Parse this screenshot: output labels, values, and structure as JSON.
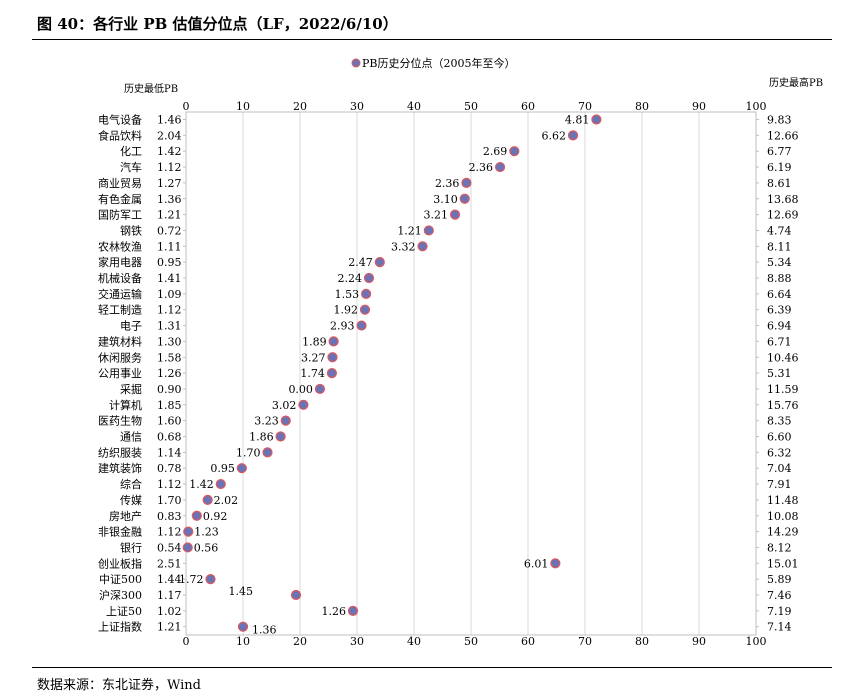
{
  "header": {
    "title": "图 40：各行业 PB 估值分位点（LF，2022/6/10）"
  },
  "footer": {
    "source": "数据来源：东北证券，Wind"
  },
  "chart_data": {
    "type": "scatter",
    "title": "",
    "legend": {
      "label": "PB历史分位点（2005年至今）",
      "position": "top-center"
    },
    "left_axis_label": "历史最低PB",
    "right_axis_label": "历史最高PB",
    "xlim": [
      0,
      100
    ],
    "xticks": [
      0,
      10,
      20,
      30,
      40,
      50,
      60,
      70,
      80,
      90,
      100
    ],
    "grid": true,
    "marker_color": "#6b72b5",
    "marker_edge_color": "#e0585a",
    "rows": [
      {
        "category": "电气设备",
        "low": "1.46",
        "high": "9.83",
        "pct": 72.0,
        "current": "4.81",
        "label_side": "left"
      },
      {
        "category": "食品饮料",
        "low": "2.04",
        "high": "12.66",
        "pct": 67.9,
        "current": "6.62",
        "label_side": "left"
      },
      {
        "category": "化工",
        "low": "1.42",
        "high": "6.77",
        "pct": 57.6,
        "current": "2.69",
        "label_side": "left"
      },
      {
        "category": "汽车",
        "low": "1.12",
        "high": "6.19",
        "pct": 55.1,
        "current": "2.36",
        "label_side": "left"
      },
      {
        "category": "商业贸易",
        "low": "1.27",
        "high": "8.61",
        "pct": 49.2,
        "current": "2.36",
        "label_side": "left"
      },
      {
        "category": "有色金属",
        "low": "1.36",
        "high": "13.68",
        "pct": 48.9,
        "current": "3.10",
        "label_side": "left"
      },
      {
        "category": "国防军工",
        "low": "1.21",
        "high": "12.69",
        "pct": 47.2,
        "current": "3.21",
        "label_side": "left"
      },
      {
        "category": "钢铁",
        "low": "0.72",
        "high": "4.74",
        "pct": 42.6,
        "current": "1.21",
        "label_side": "left"
      },
      {
        "category": "农林牧渔",
        "low": "1.11",
        "high": "8.11",
        "pct": 41.5,
        "current": "3.32",
        "label_side": "left"
      },
      {
        "category": "家用电器",
        "low": "0.95",
        "high": "5.34",
        "pct": 34.0,
        "current": "2.47",
        "label_side": "left"
      },
      {
        "category": "机械设备",
        "low": "1.41",
        "high": "8.88",
        "pct": 32.1,
        "current": "2.24",
        "label_side": "left"
      },
      {
        "category": "交通运输",
        "low": "1.09",
        "high": "6.64",
        "pct": 31.6,
        "current": "1.53",
        "label_side": "left"
      },
      {
        "category": "轻工制造",
        "low": "1.12",
        "high": "6.39",
        "pct": 31.4,
        "current": "1.92",
        "label_side": "left"
      },
      {
        "category": "电子",
        "low": "1.31",
        "high": "6.94",
        "pct": 30.8,
        "current": "2.93",
        "label_side": "left"
      },
      {
        "category": "建筑材料",
        "low": "1.30",
        "high": "6.71",
        "pct": 25.9,
        "current": "1.89",
        "label_side": "left"
      },
      {
        "category": "休闲服务",
        "low": "1.58",
        "high": "10.46",
        "pct": 25.7,
        "current": "3.27",
        "label_side": "left"
      },
      {
        "category": "公用事业",
        "low": "1.26",
        "high": "5.31",
        "pct": 25.6,
        "current": "1.74",
        "label_side": "left"
      },
      {
        "category": "采掘",
        "low": "0.90",
        "high": "11.59",
        "pct": 23.5,
        "current": "0.00",
        "label_side": "left"
      },
      {
        "category": "计算机",
        "low": "1.85",
        "high": "15.76",
        "pct": 20.6,
        "current": "3.02",
        "label_side": "left"
      },
      {
        "category": "医药生物",
        "low": "1.60",
        "high": "8.35",
        "pct": 17.5,
        "current": "3.23",
        "label_side": "left"
      },
      {
        "category": "通信",
        "low": "0.68",
        "high": "6.60",
        "pct": 16.6,
        "current": "1.86",
        "label_side": "left"
      },
      {
        "category": "纺织服装",
        "low": "1.14",
        "high": "6.32",
        "pct": 14.3,
        "current": "1.70",
        "label_side": "left"
      },
      {
        "category": "建筑装饰",
        "low": "0.78",
        "high": "7.04",
        "pct": 9.8,
        "current": "0.95",
        "label_side": "left"
      },
      {
        "category": "综合",
        "low": "1.12",
        "high": "7.91",
        "pct": 6.1,
        "current": "1.42",
        "label_side": "left"
      },
      {
        "category": "传媒",
        "low": "1.70",
        "high": "11.48",
        "pct": 3.8,
        "current": "2.02",
        "label_side": "right"
      },
      {
        "category": "房地产",
        "low": "0.83",
        "high": "10.08",
        "pct": 1.9,
        "current": "0.92",
        "label_side": "right"
      },
      {
        "category": "非银金融",
        "low": "1.12",
        "high": "14.29",
        "pct": 0.4,
        "current": "1.23",
        "label_side": "right"
      },
      {
        "category": "银行",
        "low": "0.54",
        "high": "8.12",
        "pct": 0.3,
        "current": "0.56",
        "label_side": "right"
      },
      {
        "category": "创业板指",
        "low": "2.51",
        "high": "15.01",
        "pct": 64.8,
        "current": "6.01",
        "label_side": "left"
      },
      {
        "category": "中证500",
        "low": "1.44",
        "high": "5.89",
        "pct": 4.3,
        "current": "1.72",
        "label_side": "left"
      },
      {
        "category": "沪深300",
        "low": "1.17",
        "high": "7.46",
        "pct": 19.3,
        "current": "1.45",
        "label_side": "above-left"
      },
      {
        "category": "上证50",
        "low": "1.02",
        "high": "7.19",
        "pct": 29.3,
        "current": "1.26",
        "label_side": "left"
      },
      {
        "category": "上证指数",
        "low": "1.21",
        "high": "7.14",
        "pct": 10.0,
        "current": "1.36",
        "label_side": "below-right"
      }
    ]
  }
}
